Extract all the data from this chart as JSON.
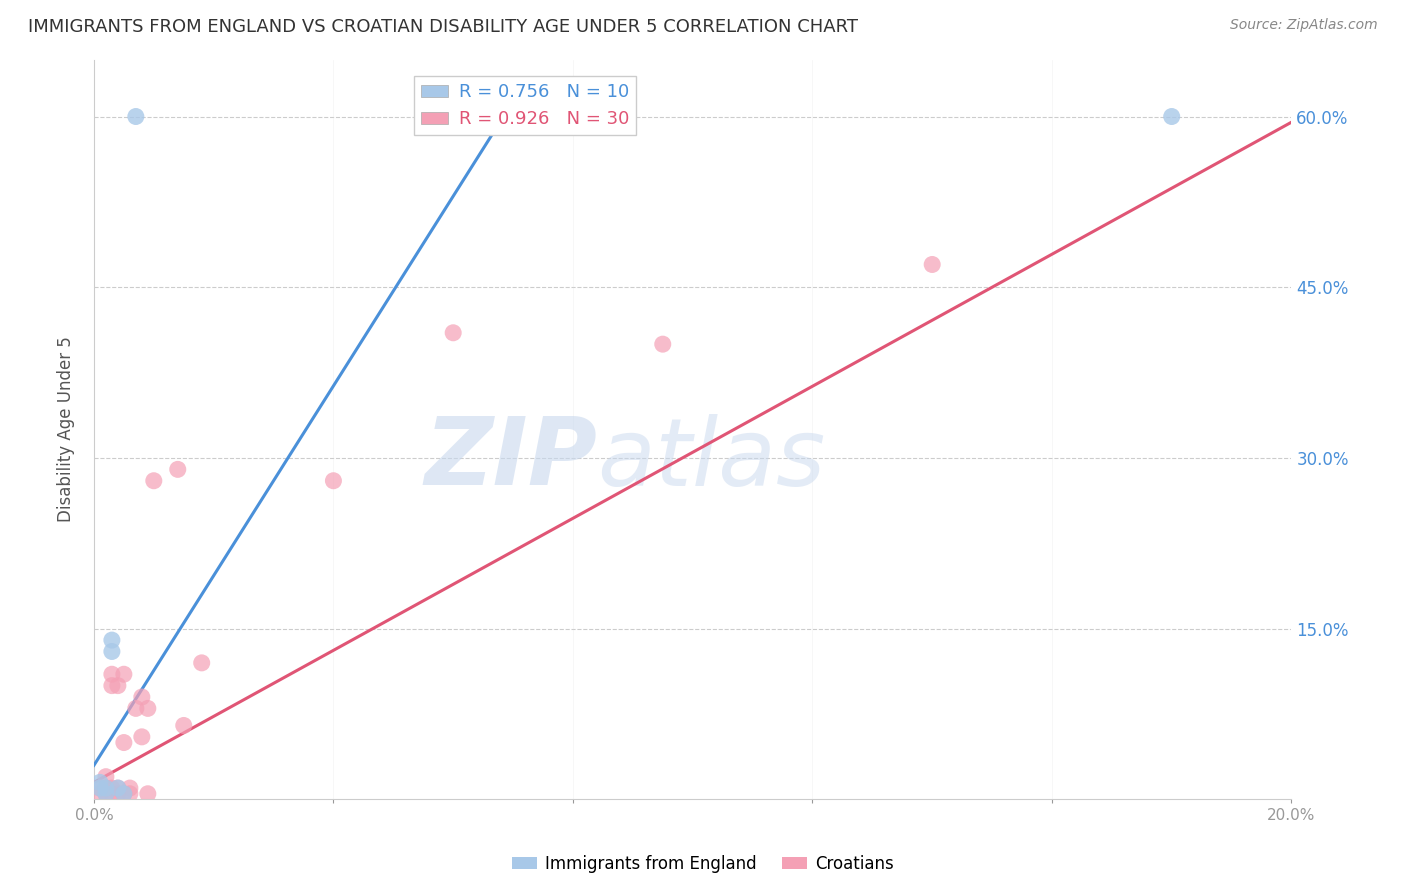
{
  "title": "IMMIGRANTS FROM ENGLAND VS CROATIAN DISABILITY AGE UNDER 5 CORRELATION CHART",
  "source": "Source: ZipAtlas.com",
  "ylabel": "Disability Age Under 5",
  "xlim": [
    0.0,
    0.2
  ],
  "ylim": [
    0.0,
    0.65
  ],
  "england_R": 0.756,
  "england_N": 10,
  "croatian_R": 0.926,
  "croatian_N": 30,
  "england_color": "#a8c8e8",
  "england_line_color": "#4a90d9",
  "croatian_color": "#f4a0b5",
  "croatian_line_color": "#e05575",
  "right_tick_color": "#4a90d9",
  "watermark_zip": "ZIP",
  "watermark_atlas": "atlas",
  "england_x": [
    0.001,
    0.001,
    0.002,
    0.002,
    0.003,
    0.003,
    0.004,
    0.005,
    0.007,
    0.18
  ],
  "england_y": [
    0.01,
    0.015,
    0.005,
    0.01,
    0.13,
    0.14,
    0.01,
    0.005,
    0.6,
    0.6
  ],
  "croatian_x": [
    0.001,
    0.001,
    0.002,
    0.002,
    0.002,
    0.003,
    0.003,
    0.003,
    0.003,
    0.004,
    0.004,
    0.004,
    0.005,
    0.005,
    0.005,
    0.006,
    0.006,
    0.007,
    0.008,
    0.008,
    0.009,
    0.009,
    0.01,
    0.014,
    0.015,
    0.018,
    0.04,
    0.06,
    0.095,
    0.14
  ],
  "croatian_y": [
    0.005,
    0.01,
    0.005,
    0.01,
    0.02,
    0.005,
    0.01,
    0.1,
    0.11,
    0.005,
    0.01,
    0.1,
    0.005,
    0.05,
    0.11,
    0.005,
    0.01,
    0.08,
    0.055,
    0.09,
    0.005,
    0.08,
    0.28,
    0.29,
    0.065,
    0.12,
    0.28,
    0.41,
    0.4,
    0.47
  ],
  "england_line_x": [
    0.0,
    0.072
  ],
  "england_line_y": [
    0.03,
    0.63
  ],
  "croatian_line_x": [
    0.0,
    0.2
  ],
  "croatian_line_y": [
    0.015,
    0.595
  ],
  "y_ticks": [
    0.0,
    0.15,
    0.3,
    0.45,
    0.6
  ],
  "x_ticks": [
    0.0,
    0.04,
    0.08,
    0.12,
    0.16,
    0.2
  ]
}
